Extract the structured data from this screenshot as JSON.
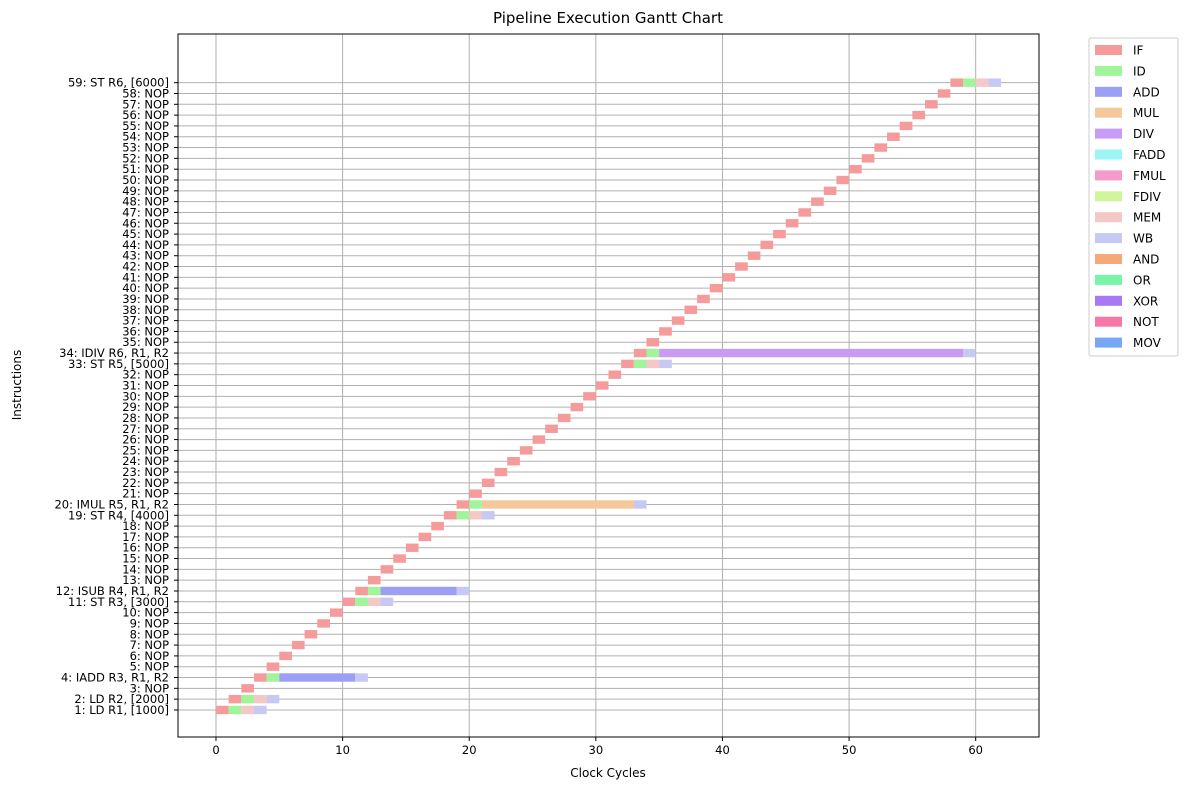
{
  "chart_data": {
    "type": "gantt",
    "title": "Pipeline Execution Gantt Chart",
    "xlabel": "Clock Cycles",
    "ylabel": "Instructions",
    "xlim": [
      -3,
      65
    ],
    "xticks": [
      0,
      10,
      20,
      30,
      40,
      50,
      60
    ],
    "grid": true,
    "legend_position": "upper right, outside plot",
    "stage_colors": {
      "IF": "#f59b9b",
      "ID": "#a0f59b",
      "ADD": "#9ba0f5",
      "MUL": "#f5c89b",
      "DIV": "#c89bf5",
      "FADD": "#9bf5f5",
      "FMUL": "#f59bcb",
      "FDIV": "#d0f59b",
      "MEM": "#f5c8c8",
      "WB": "#c8c8f5",
      "AND": "#f5a878",
      "OR": "#78f5a8",
      "XOR": "#a878f5",
      "NOT": "#f578a8",
      "MOV": "#78a8f5"
    },
    "legend": [
      "IF",
      "ID",
      "ADD",
      "MUL",
      "DIV",
      "FADD",
      "FMUL",
      "FDIV",
      "MEM",
      "WB",
      "AND",
      "OR",
      "XOR",
      "NOT",
      "MOV"
    ],
    "instructions": [
      {
        "id": 1,
        "label": "1: LD R1, [1000]",
        "stages": [
          {
            "stage": "IF",
            "start": 0,
            "end": 1
          },
          {
            "stage": "ID",
            "start": 1,
            "end": 2
          },
          {
            "stage": "MEM",
            "start": 2,
            "end": 3
          },
          {
            "stage": "WB",
            "start": 3,
            "end": 4
          }
        ]
      },
      {
        "id": 2,
        "label": "2: LD R2, [2000]",
        "stages": [
          {
            "stage": "IF",
            "start": 1,
            "end": 2
          },
          {
            "stage": "ID",
            "start": 2,
            "end": 3
          },
          {
            "stage": "MEM",
            "start": 3,
            "end": 4
          },
          {
            "stage": "WB",
            "start": 4,
            "end": 5
          }
        ]
      },
      {
        "id": 3,
        "label": "3: NOP",
        "stages": [
          {
            "stage": "IF",
            "start": 2,
            "end": 3
          }
        ]
      },
      {
        "id": 4,
        "label": "4: IADD R3, R1, R2",
        "stages": [
          {
            "stage": "IF",
            "start": 3,
            "end": 4
          },
          {
            "stage": "ID",
            "start": 4,
            "end": 5
          },
          {
            "stage": "ADD",
            "start": 5,
            "end": 11
          },
          {
            "stage": "WB",
            "start": 11,
            "end": 12
          }
        ]
      },
      {
        "id": 5,
        "label": "5: NOP",
        "stages": [
          {
            "stage": "IF",
            "start": 4,
            "end": 5
          }
        ]
      },
      {
        "id": 6,
        "label": "6: NOP",
        "stages": [
          {
            "stage": "IF",
            "start": 5,
            "end": 6
          }
        ]
      },
      {
        "id": 7,
        "label": "7: NOP",
        "stages": [
          {
            "stage": "IF",
            "start": 6,
            "end": 7
          }
        ]
      },
      {
        "id": 8,
        "label": "8: NOP",
        "stages": [
          {
            "stage": "IF",
            "start": 7,
            "end": 8
          }
        ]
      },
      {
        "id": 9,
        "label": "9: NOP",
        "stages": [
          {
            "stage": "IF",
            "start": 8,
            "end": 9
          }
        ]
      },
      {
        "id": 10,
        "label": "10: NOP",
        "stages": [
          {
            "stage": "IF",
            "start": 9,
            "end": 10
          }
        ]
      },
      {
        "id": 11,
        "label": "11: ST R3, [3000]",
        "stages": [
          {
            "stage": "IF",
            "start": 10,
            "end": 11
          },
          {
            "stage": "ID",
            "start": 11,
            "end": 12
          },
          {
            "stage": "MEM",
            "start": 12,
            "end": 13
          },
          {
            "stage": "WB",
            "start": 13,
            "end": 14
          }
        ]
      },
      {
        "id": 12,
        "label": "12: ISUB R4, R1, R2",
        "stages": [
          {
            "stage": "IF",
            "start": 11,
            "end": 12
          },
          {
            "stage": "ID",
            "start": 12,
            "end": 13
          },
          {
            "stage": "ADD",
            "start": 13,
            "end": 19
          },
          {
            "stage": "WB",
            "start": 19,
            "end": 20
          }
        ]
      },
      {
        "id": 13,
        "label": "13: NOP",
        "stages": [
          {
            "stage": "IF",
            "start": 12,
            "end": 13
          }
        ]
      },
      {
        "id": 14,
        "label": "14: NOP",
        "stages": [
          {
            "stage": "IF",
            "start": 13,
            "end": 14
          }
        ]
      },
      {
        "id": 15,
        "label": "15: NOP",
        "stages": [
          {
            "stage": "IF",
            "start": 14,
            "end": 15
          }
        ]
      },
      {
        "id": 16,
        "label": "16: NOP",
        "stages": [
          {
            "stage": "IF",
            "start": 15,
            "end": 16
          }
        ]
      },
      {
        "id": 17,
        "label": "17: NOP",
        "stages": [
          {
            "stage": "IF",
            "start": 16,
            "end": 17
          }
        ]
      },
      {
        "id": 18,
        "label": "18: NOP",
        "stages": [
          {
            "stage": "IF",
            "start": 17,
            "end": 18
          }
        ]
      },
      {
        "id": 19,
        "label": "19: ST R4, [4000]",
        "stages": [
          {
            "stage": "IF",
            "start": 18,
            "end": 19
          },
          {
            "stage": "ID",
            "start": 19,
            "end": 20
          },
          {
            "stage": "MEM",
            "start": 20,
            "end": 21
          },
          {
            "stage": "WB",
            "start": 21,
            "end": 22
          }
        ]
      },
      {
        "id": 20,
        "label": "20: IMUL R5, R1, R2",
        "stages": [
          {
            "stage": "IF",
            "start": 19,
            "end": 20
          },
          {
            "stage": "ID",
            "start": 20,
            "end": 21
          },
          {
            "stage": "MUL",
            "start": 21,
            "end": 33
          },
          {
            "stage": "WB",
            "start": 33,
            "end": 34
          }
        ]
      },
      {
        "id": 21,
        "label": "21: NOP",
        "stages": [
          {
            "stage": "IF",
            "start": 20,
            "end": 21
          }
        ]
      },
      {
        "id": 22,
        "label": "22: NOP",
        "stages": [
          {
            "stage": "IF",
            "start": 21,
            "end": 22
          }
        ]
      },
      {
        "id": 23,
        "label": "23: NOP",
        "stages": [
          {
            "stage": "IF",
            "start": 22,
            "end": 23
          }
        ]
      },
      {
        "id": 24,
        "label": "24: NOP",
        "stages": [
          {
            "stage": "IF",
            "start": 23,
            "end": 24
          }
        ]
      },
      {
        "id": 25,
        "label": "25: NOP",
        "stages": [
          {
            "stage": "IF",
            "start": 24,
            "end": 25
          }
        ]
      },
      {
        "id": 26,
        "label": "26: NOP",
        "stages": [
          {
            "stage": "IF",
            "start": 25,
            "end": 26
          }
        ]
      },
      {
        "id": 27,
        "label": "27: NOP",
        "stages": [
          {
            "stage": "IF",
            "start": 26,
            "end": 27
          }
        ]
      },
      {
        "id": 28,
        "label": "28: NOP",
        "stages": [
          {
            "stage": "IF",
            "start": 27,
            "end": 28
          }
        ]
      },
      {
        "id": 29,
        "label": "29: NOP",
        "stages": [
          {
            "stage": "IF",
            "start": 28,
            "end": 29
          }
        ]
      },
      {
        "id": 30,
        "label": "30: NOP",
        "stages": [
          {
            "stage": "IF",
            "start": 29,
            "end": 30
          }
        ]
      },
      {
        "id": 31,
        "label": "31: NOP",
        "stages": [
          {
            "stage": "IF",
            "start": 30,
            "end": 31
          }
        ]
      },
      {
        "id": 32,
        "label": "32: NOP",
        "stages": [
          {
            "stage": "IF",
            "start": 31,
            "end": 32
          }
        ]
      },
      {
        "id": 33,
        "label": "33: ST R5, [5000]",
        "stages": [
          {
            "stage": "IF",
            "start": 32,
            "end": 33
          },
          {
            "stage": "ID",
            "start": 33,
            "end": 34
          },
          {
            "stage": "MEM",
            "start": 34,
            "end": 35
          },
          {
            "stage": "WB",
            "start": 35,
            "end": 36
          }
        ]
      },
      {
        "id": 34,
        "label": "34: IDIV R6, R1, R2",
        "stages": [
          {
            "stage": "IF",
            "start": 33,
            "end": 34
          },
          {
            "stage": "ID",
            "start": 34,
            "end": 35
          },
          {
            "stage": "DIV",
            "start": 35,
            "end": 59
          },
          {
            "stage": "WB",
            "start": 59,
            "end": 60
          }
        ]
      },
      {
        "id": 35,
        "label": "35: NOP",
        "stages": [
          {
            "stage": "IF",
            "start": 34,
            "end": 35
          }
        ]
      },
      {
        "id": 36,
        "label": "36: NOP",
        "stages": [
          {
            "stage": "IF",
            "start": 35,
            "end": 36
          }
        ]
      },
      {
        "id": 37,
        "label": "37: NOP",
        "stages": [
          {
            "stage": "IF",
            "start": 36,
            "end": 37
          }
        ]
      },
      {
        "id": 38,
        "label": "38: NOP",
        "stages": [
          {
            "stage": "IF",
            "start": 37,
            "end": 38
          }
        ]
      },
      {
        "id": 39,
        "label": "39: NOP",
        "stages": [
          {
            "stage": "IF",
            "start": 38,
            "end": 39
          }
        ]
      },
      {
        "id": 40,
        "label": "40: NOP",
        "stages": [
          {
            "stage": "IF",
            "start": 39,
            "end": 40
          }
        ]
      },
      {
        "id": 41,
        "label": "41: NOP",
        "stages": [
          {
            "stage": "IF",
            "start": 40,
            "end": 41
          }
        ]
      },
      {
        "id": 42,
        "label": "42: NOP",
        "stages": [
          {
            "stage": "IF",
            "start": 41,
            "end": 42
          }
        ]
      },
      {
        "id": 43,
        "label": "43: NOP",
        "stages": [
          {
            "stage": "IF",
            "start": 42,
            "end": 43
          }
        ]
      },
      {
        "id": 44,
        "label": "44: NOP",
        "stages": [
          {
            "stage": "IF",
            "start": 43,
            "end": 44
          }
        ]
      },
      {
        "id": 45,
        "label": "45: NOP",
        "stages": [
          {
            "stage": "IF",
            "start": 44,
            "end": 45
          }
        ]
      },
      {
        "id": 46,
        "label": "46: NOP",
        "stages": [
          {
            "stage": "IF",
            "start": 45,
            "end": 46
          }
        ]
      },
      {
        "id": 47,
        "label": "47: NOP",
        "stages": [
          {
            "stage": "IF",
            "start": 46,
            "end": 47
          }
        ]
      },
      {
        "id": 48,
        "label": "48: NOP",
        "stages": [
          {
            "stage": "IF",
            "start": 47,
            "end": 48
          }
        ]
      },
      {
        "id": 49,
        "label": "49: NOP",
        "stages": [
          {
            "stage": "IF",
            "start": 48,
            "end": 49
          }
        ]
      },
      {
        "id": 50,
        "label": "50: NOP",
        "stages": [
          {
            "stage": "IF",
            "start": 49,
            "end": 50
          }
        ]
      },
      {
        "id": 51,
        "label": "51: NOP",
        "stages": [
          {
            "stage": "IF",
            "start": 50,
            "end": 51
          }
        ]
      },
      {
        "id": 52,
        "label": "52: NOP",
        "stages": [
          {
            "stage": "IF",
            "start": 51,
            "end": 52
          }
        ]
      },
      {
        "id": 53,
        "label": "53: NOP",
        "stages": [
          {
            "stage": "IF",
            "start": 52,
            "end": 53
          }
        ]
      },
      {
        "id": 54,
        "label": "54: NOP",
        "stages": [
          {
            "stage": "IF",
            "start": 53,
            "end": 54
          }
        ]
      },
      {
        "id": 55,
        "label": "55: NOP",
        "stages": [
          {
            "stage": "IF",
            "start": 54,
            "end": 55
          }
        ]
      },
      {
        "id": 56,
        "label": "56: NOP",
        "stages": [
          {
            "stage": "IF",
            "start": 55,
            "end": 56
          }
        ]
      },
      {
        "id": 57,
        "label": "57: NOP",
        "stages": [
          {
            "stage": "IF",
            "start": 56,
            "end": 57
          }
        ]
      },
      {
        "id": 58,
        "label": "58: NOP",
        "stages": [
          {
            "stage": "IF",
            "start": 57,
            "end": 58
          }
        ]
      },
      {
        "id": 59,
        "label": "59: ST R6, [6000]",
        "stages": [
          {
            "stage": "IF",
            "start": 58,
            "end": 59
          },
          {
            "stage": "ID",
            "start": 59,
            "end": 60
          },
          {
            "stage": "MEM",
            "start": 60,
            "end": 61
          },
          {
            "stage": "WB",
            "start": 61,
            "end": 62
          }
        ]
      }
    ]
  }
}
